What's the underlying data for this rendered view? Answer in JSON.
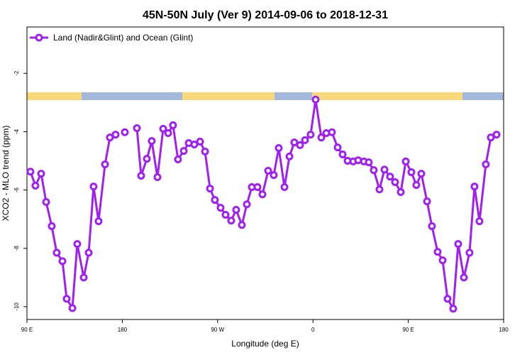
{
  "chart_data": {
    "type": "line",
    "title": "45N-50N July (Ver 9)   2014-09-06 to 2018-12-31",
    "x_label": "Longitude (deg E)",
    "y_label": "XCO2 - MLO trend (ppm)",
    "legend": "top-left",
    "xlim": [
      90,
      540
    ],
    "xticks": [
      {
        "value": 90,
        "label": "90 E"
      },
      180,
      {
        "value": 270,
        "label": "90 W"
      },
      {
        "value": 360,
        "label": "0"
      },
      {
        "value": 450,
        "label": "90 E"
      },
      {
        "value": 540,
        "label": "180"
      }
    ],
    "ylim": [
      -10.44,
      -0.41
    ],
    "yticks": [
      -10,
      -8,
      -6,
      -4,
      -2
    ],
    "series": [
      {
        "name": "Land (Nadir&Glint) and Ocean (Glint)",
        "color": "#a020f0",
        "x": [
          93.3,
          98.0,
          103.4,
          108.1,
          113.4,
          118.1,
          123.5,
          127.5,
          132.9,
          137.5,
          143.6,
          148.3,
          152.9,
          157.6,
          163.7,
          168.3,
          173.7,
          178,
          182.4,
          188,
          193.8,
          197.8,
          203.2,
          207.8,
          213.2,
          218.6,
          223.3,
          227.9,
          232.6,
          238.0,
          242.7,
          248.0,
          253.4,
          258.1,
          262.8,
          267.4,
          272.8,
          277.5,
          282.8,
          287.5,
          292.9,
          297.6,
          302.3,
          307.6,
          312.3,
          317.7,
          323.0,
          327.7,
          333.1,
          337.8,
          342.4,
          347.8,
          352.5,
          357.8,
          362.5,
          367.9,
          372.6,
          377.9,
          383.3,
          388.0,
          392.7,
          398.0,
          402.7,
          408.1,
          412.7,
          417.4,
          422.8,
          427.5,
          432.8,
          437.5,
          442.9,
          447.6,
          452.9,
          457.6,
          462.3,
          467.7,
          472.3,
          477.7,
          482.4,
          487.1,
          492.4,
          497.1,
          502.5,
          507.8,
          512.5,
          517.2,
          523.2,
          527.9,
          533.3
        ],
        "values": [
          -5.37,
          -5.85,
          -5.44,
          -6.41,
          -7.24,
          -8.15,
          -8.44,
          -9.73,
          -10.05,
          -7.85,
          -9.0,
          -8.15,
          -5.88,
          -7.07,
          -5.12,
          -4.2,
          -4.1,
          null,
          -4.02,
          null,
          -3.88,
          -5.51,
          -4.93,
          -4.32,
          -5.56,
          -3.9,
          -4.05,
          -3.78,
          -4.95,
          -4.66,
          -4.39,
          -4.44,
          -4.34,
          -4.68,
          -5.95,
          -6.34,
          -6.61,
          -6.85,
          -7.05,
          -6.68,
          -7.2,
          -6.49,
          -5.9,
          -5.9,
          -6.15,
          -5.34,
          -5.49,
          -4.56,
          -5.9,
          -4.85,
          -4.37,
          -4.46,
          -4.29,
          -4.1,
          -2.9,
          -4.2,
          -4.05,
          -4.02,
          -4.54,
          -4.78,
          -5.0,
          -5.02,
          -4.98,
          -5.02,
          -5.05,
          -5.32,
          -5.98,
          -5.3,
          -5.54,
          -5.73,
          -6.07,
          -5.02,
          -5.39,
          -5.83,
          -5.44,
          -6.39,
          -7.24,
          -8.12,
          -8.41,
          -9.73,
          -10.07,
          -7.85,
          -9.0,
          -8.15,
          -5.88,
          -7.07,
          -5.12,
          -4.2,
          -4.1
        ]
      }
    ]
  }
}
